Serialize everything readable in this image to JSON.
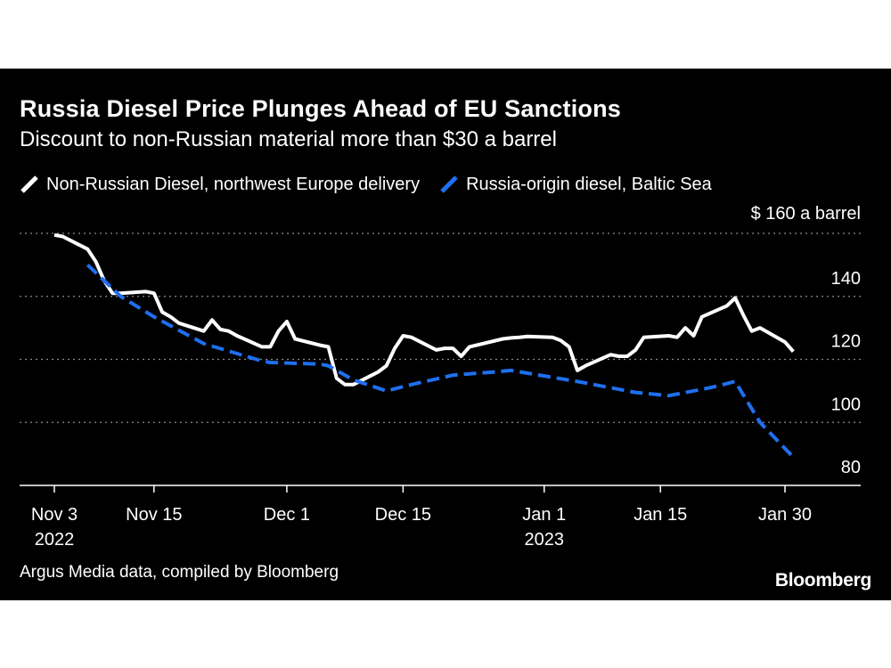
{
  "chart_data": {
    "type": "line",
    "title": "Russia Diesel Price Plunges Ahead of EU Sanctions",
    "subtitle": "Discount to non-Russian material more than $30 a barrel",
    "y_unit_label": "$ 160 a barrel",
    "ylim": [
      80,
      160
    ],
    "yticks": [
      80,
      100,
      120,
      140,
      160
    ],
    "ytick_labels": [
      "80",
      "100",
      "120",
      "140",
      ""
    ],
    "grid": true,
    "legend_position": "top-left",
    "xlim": [
      "2022-11-03",
      "2023-02-05"
    ],
    "xticks": [
      {
        "date": "2022-11-03",
        "label": "Nov 3",
        "sublabel": "2022"
      },
      {
        "date": "2022-11-15",
        "label": "Nov 15",
        "sublabel": ""
      },
      {
        "date": "2022-12-01",
        "label": "Dec 1",
        "sublabel": ""
      },
      {
        "date": "2022-12-15",
        "label": "Dec 15",
        "sublabel": ""
      },
      {
        "date": "2023-01-01",
        "label": "Jan 1",
        "sublabel": "2023"
      },
      {
        "date": "2023-01-15",
        "label": "Jan 15",
        "sublabel": ""
      },
      {
        "date": "2023-01-30",
        "label": "Jan 30",
        "sublabel": ""
      }
    ],
    "series": [
      {
        "name": "Non-Russian Diesel, northwest Europe delivery",
        "color": "#ffffff",
        "style": "solid",
        "points": [
          [
            "2022-11-03",
            159.5
          ],
          [
            "2022-11-04",
            159.0
          ],
          [
            "2022-11-07",
            155.0
          ],
          [
            "2022-11-08",
            151.0
          ],
          [
            "2022-11-09",
            145.0
          ],
          [
            "2022-11-10",
            141.0
          ],
          [
            "2022-11-11",
            141.0
          ],
          [
            "2022-11-14",
            141.5
          ],
          [
            "2022-11-15",
            141.0
          ],
          [
            "2022-11-16",
            135.0
          ],
          [
            "2022-11-17",
            133.5
          ],
          [
            "2022-11-18",
            131.5
          ],
          [
            "2022-11-21",
            129.0
          ],
          [
            "2022-11-22",
            132.5
          ],
          [
            "2022-11-23",
            129.5
          ],
          [
            "2022-11-24",
            129.0
          ],
          [
            "2022-11-25",
            127.5
          ],
          [
            "2022-11-28",
            124.0
          ],
          [
            "2022-11-29",
            124.0
          ],
          [
            "2022-11-30",
            129.0
          ],
          [
            "2022-12-01",
            132.0
          ],
          [
            "2022-12-02",
            126.5
          ],
          [
            "2022-12-05",
            124.5
          ],
          [
            "2022-12-06",
            124.0
          ],
          [
            "2022-12-07",
            114.0
          ],
          [
            "2022-12-08",
            112.0
          ],
          [
            "2022-12-09",
            112.0
          ],
          [
            "2022-12-12",
            116.0
          ],
          [
            "2022-12-13",
            118.0
          ],
          [
            "2022-12-14",
            123.5
          ],
          [
            "2022-12-15",
            127.5
          ],
          [
            "2022-12-16",
            127.0
          ],
          [
            "2022-12-19",
            123.0
          ],
          [
            "2022-12-20",
            123.5
          ],
          [
            "2022-12-21",
            123.5
          ],
          [
            "2022-12-22",
            121.0
          ],
          [
            "2022-12-23",
            124.0
          ],
          [
            "2022-12-27",
            126.5
          ],
          [
            "2022-12-28",
            126.8
          ],
          [
            "2022-12-29",
            127.0
          ],
          [
            "2022-12-30",
            127.3
          ],
          [
            "2023-01-02",
            127.0
          ],
          [
            "2023-01-03",
            126.0
          ],
          [
            "2023-01-04",
            124.0
          ],
          [
            "2023-01-05",
            116.5
          ],
          [
            "2023-01-06",
            118.0
          ],
          [
            "2023-01-09",
            121.5
          ],
          [
            "2023-01-10",
            121.0
          ],
          [
            "2023-01-11",
            121.0
          ],
          [
            "2023-01-12",
            123.0
          ],
          [
            "2023-01-13",
            127.0
          ],
          [
            "2023-01-16",
            127.5
          ],
          [
            "2023-01-17",
            127.0
          ],
          [
            "2023-01-18",
            130.0
          ],
          [
            "2023-01-19",
            127.5
          ],
          [
            "2023-01-20",
            133.5
          ],
          [
            "2023-01-23",
            137.0
          ],
          [
            "2023-01-24",
            139.5
          ],
          [
            "2023-01-25",
            134.0
          ],
          [
            "2023-01-26",
            129.0
          ],
          [
            "2023-01-27",
            130.0
          ],
          [
            "2023-01-30",
            125.5
          ],
          [
            "2023-01-31",
            122.5
          ]
        ]
      },
      {
        "name": "Russia-origin diesel, Baltic Sea",
        "color": "#1f6ff0",
        "style": "dashed",
        "points": [
          [
            "2022-11-07",
            150.0
          ],
          [
            "2022-11-11",
            140.0
          ],
          [
            "2022-11-15",
            133.5
          ],
          [
            "2022-11-21",
            125.0
          ],
          [
            "2022-11-28",
            119.5
          ],
          [
            "2022-11-29",
            119.0
          ],
          [
            "2022-12-05",
            118.5
          ],
          [
            "2022-12-06",
            118.0
          ],
          [
            "2022-12-09",
            113.5
          ],
          [
            "2022-12-13",
            110.0
          ],
          [
            "2022-12-16",
            112.0
          ],
          [
            "2022-12-21",
            115.0
          ],
          [
            "2022-12-26",
            116.0
          ],
          [
            "2022-12-28",
            116.5
          ],
          [
            "2023-01-05",
            113.0
          ],
          [
            "2023-01-12",
            109.5
          ],
          [
            "2023-01-16",
            108.5
          ],
          [
            "2023-01-21",
            111.0
          ],
          [
            "2023-01-24",
            113.0
          ],
          [
            "2023-01-27",
            100.0
          ],
          [
            "2023-01-31",
            89.0
          ]
        ]
      }
    ]
  },
  "footer": {
    "source": "Argus Media data, compiled by Bloomberg",
    "brand": "Bloomberg"
  }
}
